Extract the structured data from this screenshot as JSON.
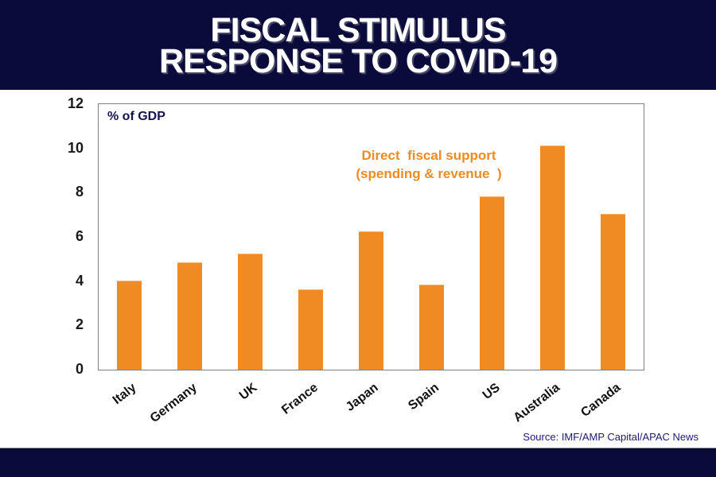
{
  "title": {
    "line1": "FISCAL STIMULUS",
    "line2": "RESPONSE TO COVID-19"
  },
  "plot_unit_label": "% of GDP",
  "annotation": {
    "line1": "Direct  fiscal support",
    "line2": "(spending & revenue  )"
  },
  "source_text": "Source: IMF/AMP Capital/APAC News",
  "colors": {
    "banner": "#0B0B3B",
    "bar": "#EE8B22",
    "annotation_text": "#EE8B22",
    "plot_border": "#808080",
    "plot_label_text": "#14144E",
    "source_text": "#1B1B6F"
  },
  "chart_data": {
    "type": "bar",
    "title": "FISCAL STIMULUS RESPONSE TO COVID-19",
    "ylabel": "% of GDP",
    "xlabel": "",
    "categories": [
      "Italy",
      "Germany",
      "UK",
      "France",
      "Japan",
      "Spain",
      "US",
      "Australia",
      "Canada"
    ],
    "values": [
      4.0,
      4.8,
      5.2,
      3.6,
      6.2,
      3.8,
      7.8,
      10.1,
      7.0
    ],
    "ylim": [
      0,
      12
    ],
    "yticks": [
      0,
      2,
      4,
      6,
      8,
      10,
      12
    ],
    "grid": false,
    "legend": "none",
    "annotation": "Direct fiscal support (spending & revenue)",
    "source": "Source: IMF/AMP Capital/APAC News"
  }
}
